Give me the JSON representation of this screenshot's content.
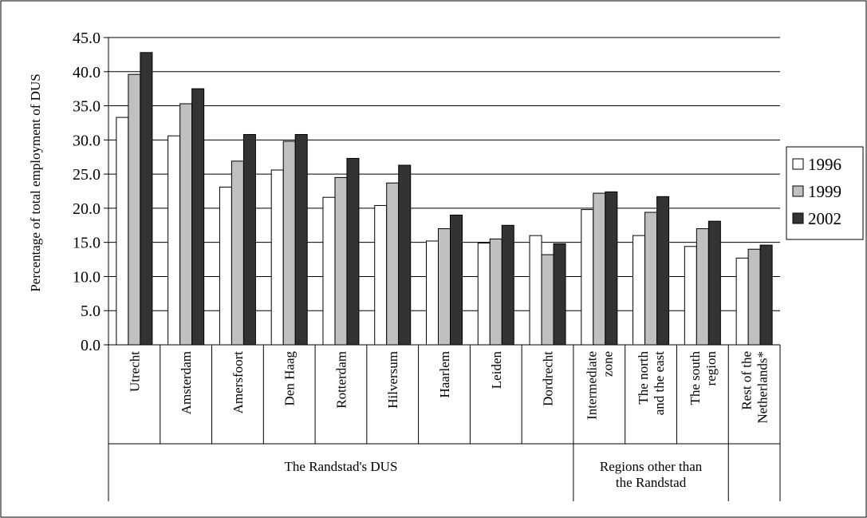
{
  "chart_data": {
    "type": "bar",
    "title": "",
    "ylabel": "Percentage of total employment of DUS",
    "ylim": [
      0,
      45
    ],
    "y_ticks": [
      "0.0",
      "5.0",
      "10.0",
      "15.0",
      "20.0",
      "25.0",
      "30.0",
      "35.0",
      "40.0",
      "45.0"
    ],
    "grid": true,
    "legend_position": "right",
    "categories": [
      "Utrecht",
      "Amsterdam",
      "Amersfoort",
      "Den Haag",
      "Rotterdam",
      "Hilversum",
      "Haarlem",
      "Leiden",
      "Dordrecht",
      "Intermediate zone",
      "The north and the east",
      "The south region",
      "Rest of the Netherlands*"
    ],
    "category_lines": [
      [
        "Utrecht"
      ],
      [
        "Amsterdam"
      ],
      [
        "Amersfoort"
      ],
      [
        "Den Haag"
      ],
      [
        "Rotterdam"
      ],
      [
        "Hilversum"
      ],
      [
        "Haarlem"
      ],
      [
        "Leiden"
      ],
      [
        "Dordrecht"
      ],
      [
        "Intermediate",
        "zone"
      ],
      [
        "The north",
        "and the east"
      ],
      [
        "The south",
        "region"
      ],
      [
        "Rest of the",
        "Netherlands*"
      ]
    ],
    "groups": [
      {
        "label_lines": [
          "The Randstad's DUS"
        ],
        "start": 0,
        "end": 8
      },
      {
        "label_lines": [
          "Regions other than",
          "the Randstad"
        ],
        "start": 9,
        "end": 11
      },
      {
        "label_lines": [],
        "start": 12,
        "end": 12
      }
    ],
    "series": [
      {
        "name": "1996",
        "color": "#ffffff",
        "values": [
          33.3,
          30.6,
          23.1,
          25.6,
          21.6,
          20.4,
          15.2,
          14.9,
          16.0,
          19.8,
          16.0,
          14.4,
          12.7
        ]
      },
      {
        "name": "1999",
        "color": "#c0c0c0",
        "values": [
          39.6,
          35.3,
          26.9,
          29.8,
          24.5,
          23.7,
          17.0,
          15.5,
          13.2,
          22.2,
          19.4,
          17.0,
          14.0
        ]
      },
      {
        "name": "2002",
        "color": "#333333",
        "values": [
          42.8,
          37.5,
          30.8,
          30.8,
          27.3,
          26.3,
          19.0,
          17.5,
          14.8,
          22.4,
          21.7,
          18.1,
          14.6
        ]
      }
    ]
  }
}
